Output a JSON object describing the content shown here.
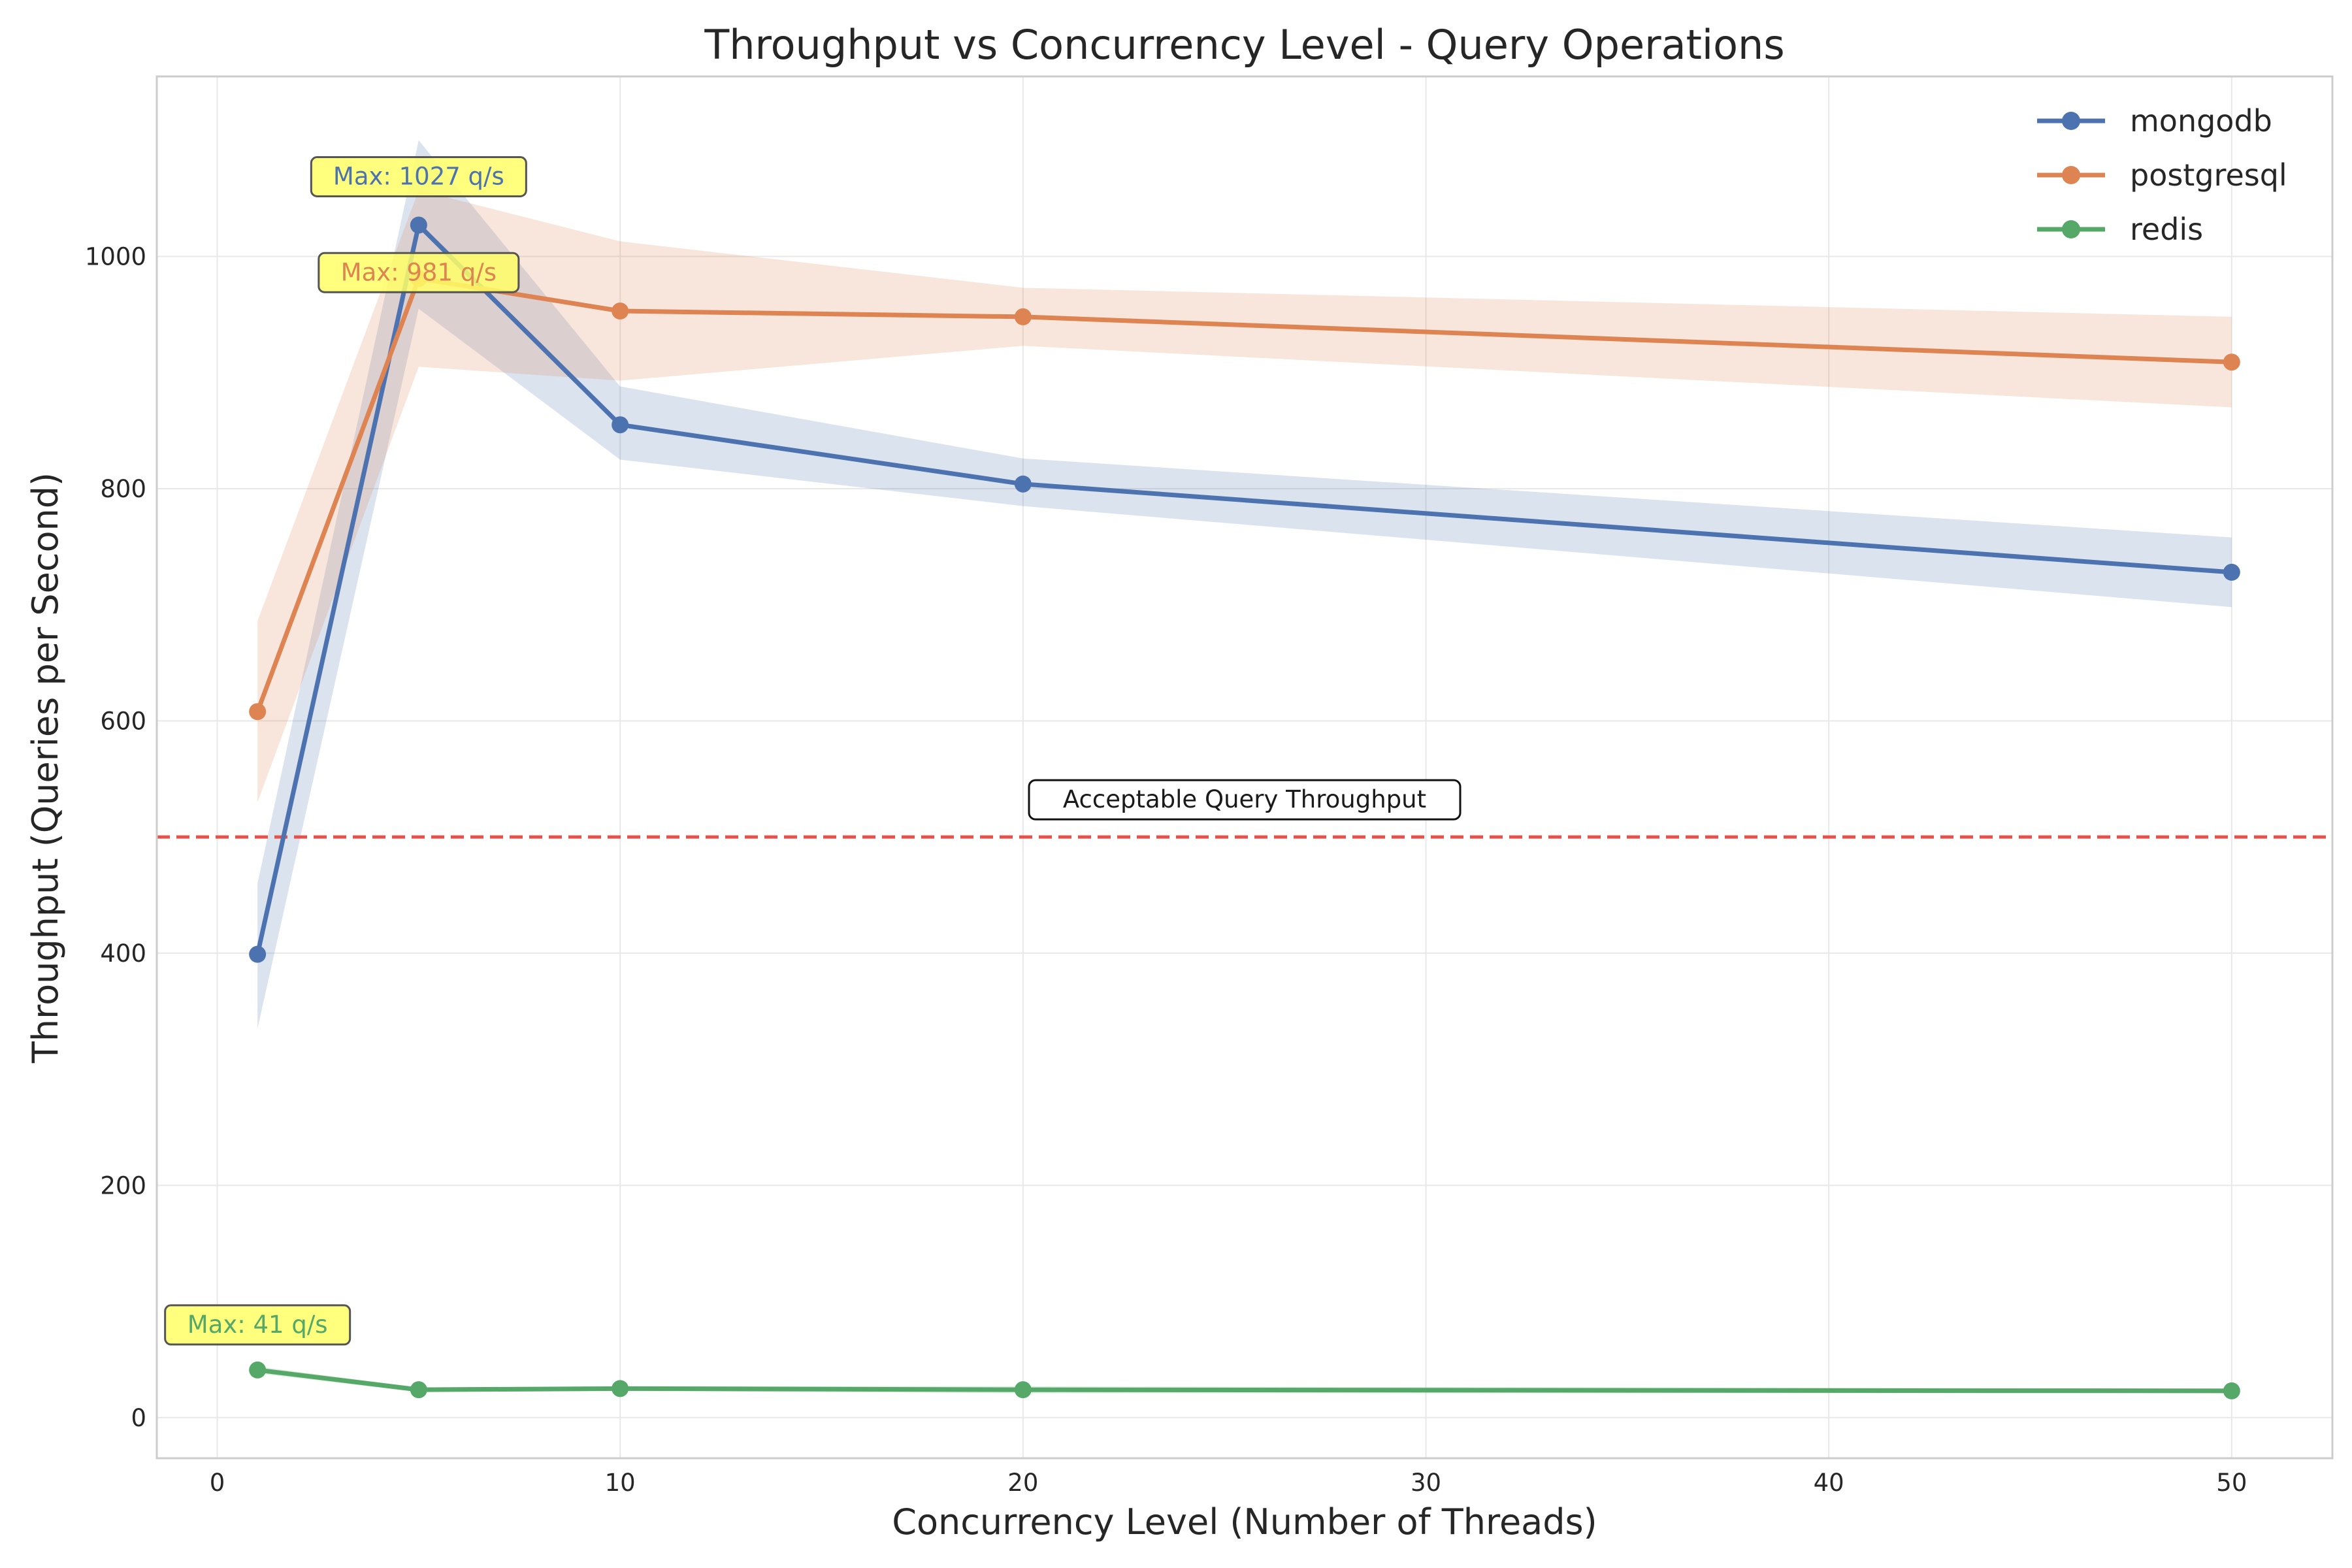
{
  "chart_data": {
    "type": "line",
    "title": "Throughput vs Concurrency Level - Query Operations",
    "xlabel": "Concurrency Level (Number of Threads)",
    "ylabel": "Throughput (Queries per Second)",
    "xlim": [
      -1.5,
      52.5
    ],
    "ylim": [
      -35,
      1155
    ],
    "xticks": [
      0,
      10,
      20,
      30,
      40,
      50
    ],
    "yticks": [
      0,
      200,
      400,
      600,
      800,
      1000
    ],
    "grid": true,
    "legend_position": "top-right",
    "x": [
      1,
      5,
      10,
      20,
      50
    ],
    "series": [
      {
        "name": "mongodb",
        "color": "#4c72b0",
        "values": [
          399,
          1027,
          855,
          804,
          728
        ],
        "lower": [
          335,
          955,
          825,
          785,
          698
        ],
        "upper": [
          460,
          1100,
          888,
          826,
          758
        ]
      },
      {
        "name": "postgresql",
        "color": "#dd8452",
        "values": [
          608,
          981,
          953,
          948,
          909
        ],
        "lower": [
          530,
          905,
          893,
          923,
          870
        ],
        "upper": [
          686,
          1057,
          1013,
          973,
          948
        ]
      },
      {
        "name": "redis",
        "color": "#55a868",
        "values": [
          41,
          24,
          25,
          24,
          23
        ],
        "lower": [
          38,
          22,
          23,
          21,
          21
        ],
        "upper": [
          44,
          26,
          27,
          27,
          25
        ]
      }
    ],
    "max_annotations": [
      {
        "series": "mongodb",
        "text": "Max: 1027 q/s",
        "x": 5,
        "y": 1027
      },
      {
        "series": "postgresql",
        "text": "Max: 981 q/s",
        "x": 5,
        "y": 981
      },
      {
        "series": "redis",
        "text": "Max: 41 q/s",
        "x": 1,
        "y": 41
      }
    ],
    "reference_line": {
      "value": 500,
      "label": "Acceptable Query Throughput",
      "color": "#e8504a",
      "style": "dashed"
    },
    "annotation_box_color": "#ffff66"
  }
}
